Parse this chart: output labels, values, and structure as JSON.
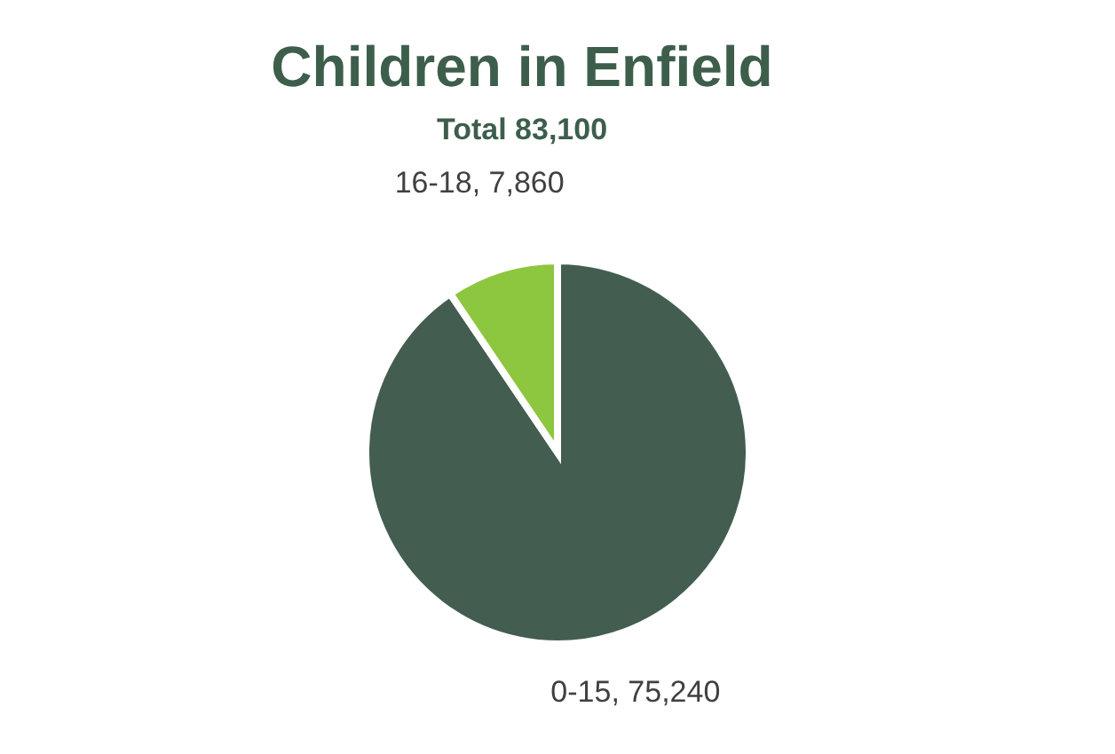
{
  "chart_data": {
    "type": "pie",
    "title": "Children in Enfield",
    "subtitle": "Total 83,100",
    "categories": [
      "0-15",
      "16-18"
    ],
    "values": [
      75240,
      7860
    ],
    "value_labels": [
      "75,240",
      "7,860"
    ],
    "colors": [
      "#435e50",
      "#8dc63f"
    ]
  }
}
